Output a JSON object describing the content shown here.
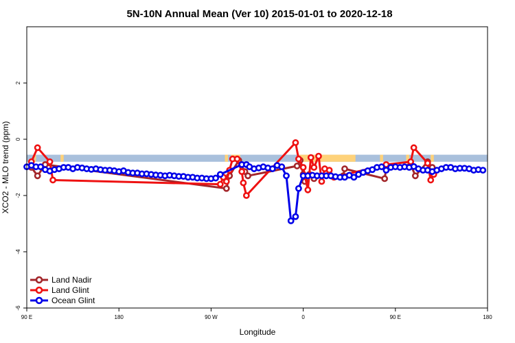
{
  "chart_data": {
    "type": "line",
    "title": "5N-10N Annual Mean (Ver 10)   2015-01-01 to 2020-12-18",
    "xlabel": "Longitude",
    "ylabel": "XCO2 - MLO trend (ppm)",
    "xlim": [
      -90,
      210
    ],
    "ylim": [
      -6,
      4
    ],
    "x_ticks": [
      {
        "value": -90,
        "label": "90 E"
      },
      {
        "value": -30,
        "label": "180"
      },
      {
        "value": 30,
        "label": "90 W"
      },
      {
        "value": 90,
        "label": "0"
      },
      {
        "value": 150,
        "label": "90 E"
      },
      {
        "value": 210,
        "label": "180"
      }
    ],
    "y_ticks": [
      {
        "value": -6,
        "label": "-6"
      },
      {
        "value": -4,
        "label": "-4"
      },
      {
        "value": -2,
        "label": "-2"
      },
      {
        "value": 0,
        "label": "0"
      },
      {
        "value": 2,
        "label": "2"
      }
    ],
    "surface_band": {
      "ymin": -0.8,
      "ymax": -0.55,
      "ocean_color": "#a9c0dc",
      "land_color": "#fed27a",
      "land_ranges": [
        [
          -85,
          -84
        ],
        [
          -68,
          -66
        ],
        [
          39,
          41
        ],
        [
          43,
          49
        ],
        [
          86,
          124
        ],
        [
          140,
          142
        ],
        [
          157,
          159
        ],
        [
          173,
          175
        ]
      ]
    },
    "legend_position": "bottom-left",
    "series": [
      {
        "name": "Land Nadir",
        "color": "#a3262a",
        "points": [
          [
            -87,
            -1.0
          ],
          [
            -83,
            -1.3
          ],
          [
            -78,
            -0.9
          ],
          [
            40,
            -1.75
          ],
          [
            42,
            -1.3
          ],
          [
            48,
            -0.75
          ],
          [
            52,
            -1.15
          ],
          [
            54,
            -1.3
          ],
          [
            86,
            -0.95
          ],
          [
            88,
            -0.75
          ],
          [
            90,
            -1.25
          ],
          [
            91,
            -1.5
          ],
          [
            94,
            -1.25
          ],
          [
            97,
            -1.4
          ],
          [
            99,
            -1.3
          ],
          [
            116,
            -1.3
          ],
          [
            117,
            -1.05
          ],
          [
            143,
            -1.4
          ],
          [
            144,
            -1.05
          ],
          [
            160,
            -0.9
          ],
          [
            163,
            -1.3
          ],
          [
            171,
            -0.8
          ],
          [
            174,
            -1.0
          ]
        ]
      },
      {
        "name": "Land Glint",
        "color": "#ee1111",
        "points": [
          [
            -87,
            -0.8
          ],
          [
            -83,
            -0.3
          ],
          [
            -75,
            -0.8
          ],
          [
            -73,
            -1.45
          ],
          [
            36,
            -1.6
          ],
          [
            38,
            -1.35
          ],
          [
            40,
            -1.5
          ],
          [
            42,
            -1.1
          ],
          [
            44,
            -0.7
          ],
          [
            47,
            -0.7
          ],
          [
            50,
            -1.15
          ],
          [
            51,
            -1.55
          ],
          [
            53,
            -2.0
          ],
          [
            85,
            -0.12
          ],
          [
            87,
            -0.7
          ],
          [
            90,
            -1.0
          ],
          [
            93,
            -1.8
          ],
          [
            95,
            -0.65
          ],
          [
            97,
            -1.0
          ],
          [
            100,
            -0.6
          ],
          [
            102,
            -1.5
          ],
          [
            104,
            -1.05
          ],
          [
            107,
            -1.1
          ],
          [
            110,
            -1.35
          ],
          [
            144,
            -0.9
          ],
          [
            160,
            -0.8
          ],
          [
            162,
            -0.3
          ],
          [
            171,
            -0.85
          ],
          [
            173,
            -1.45
          ],
          [
            175,
            -1.25
          ]
        ]
      },
      {
        "name": "Ocean Glint",
        "color": "#0000e8",
        "points": [
          [
            -90,
            -0.98
          ],
          [
            -87,
            -0.93
          ],
          [
            -84,
            -0.98
          ],
          [
            -81,
            -0.98
          ],
          [
            -78,
            -1.08
          ],
          [
            -75,
            -1.13
          ],
          [
            -72,
            -1.08
          ],
          [
            -69,
            -1.05
          ],
          [
            -66,
            -1.0
          ],
          [
            -63,
            -1.0
          ],
          [
            -60,
            -1.05
          ],
          [
            -57,
            -1.0
          ],
          [
            -54,
            -1.02
          ],
          [
            -51,
            -1.05
          ],
          [
            -48,
            -1.07
          ],
          [
            -45,
            -1.05
          ],
          [
            -42,
            -1.08
          ],
          [
            -39,
            -1.1
          ],
          [
            -36,
            -1.1
          ],
          [
            -33,
            -1.12
          ],
          [
            -30,
            -1.15
          ],
          [
            -27,
            -1.12
          ],
          [
            -24,
            -1.18
          ],
          [
            -21,
            -1.2
          ],
          [
            -18,
            -1.2
          ],
          [
            -15,
            -1.23
          ],
          [
            -12,
            -1.23
          ],
          [
            -9,
            -1.25
          ],
          [
            -6,
            -1.27
          ],
          [
            -3,
            -1.28
          ],
          [
            0,
            -1.3
          ],
          [
            3,
            -1.28
          ],
          [
            6,
            -1.3
          ],
          [
            9,
            -1.32
          ],
          [
            12,
            -1.32
          ],
          [
            15,
            -1.35
          ],
          [
            18,
            -1.35
          ],
          [
            21,
            -1.38
          ],
          [
            24,
            -1.38
          ],
          [
            27,
            -1.4
          ],
          [
            30,
            -1.4
          ],
          [
            33,
            -1.38
          ],
          [
            36,
            -1.25
          ],
          [
            50,
            -0.9
          ],
          [
            53,
            -0.9
          ],
          [
            55,
            -0.98
          ],
          [
            58,
            -1.05
          ],
          [
            61,
            -1.02
          ],
          [
            64,
            -0.98
          ],
          [
            67,
            -1.02
          ],
          [
            70,
            -1.05
          ],
          [
            73,
            -0.93
          ],
          [
            76,
            -0.98
          ],
          [
            79,
            -1.3
          ],
          [
            82,
            -2.9
          ],
          [
            85,
            -2.75
          ],
          [
            87,
            -1.75
          ],
          [
            90,
            -1.3
          ],
          [
            93,
            -1.3
          ],
          [
            96,
            -1.28
          ],
          [
            99,
            -1.3
          ],
          [
            102,
            -1.3
          ],
          [
            105,
            -1.3
          ],
          [
            108,
            -1.3
          ],
          [
            111,
            -1.33
          ],
          [
            114,
            -1.35
          ],
          [
            117,
            -1.35
          ],
          [
            120,
            -1.28
          ],
          [
            123,
            -1.35
          ],
          [
            126,
            -1.25
          ],
          [
            129,
            -1.18
          ],
          [
            132,
            -1.12
          ],
          [
            135,
            -1.08
          ],
          [
            138,
            -1.0
          ],
          [
            141,
            -0.98
          ],
          [
            144,
            -1.1
          ],
          [
            147,
            -1.0
          ],
          [
            150,
            -0.98
          ],
          [
            153,
            -1.0
          ],
          [
            156,
            -0.98
          ],
          [
            159,
            -1.0
          ],
          [
            162,
            -0.97
          ],
          [
            165,
            -1.05
          ],
          [
            168,
            -1.1
          ],
          [
            171,
            -1.1
          ],
          [
            174,
            -1.15
          ],
          [
            177,
            -1.1
          ],
          [
            180,
            -1.05
          ],
          [
            183,
            -1.0
          ],
          [
            186,
            -1.0
          ],
          [
            189,
            -1.05
          ],
          [
            192,
            -1.03
          ],
          [
            195,
            -1.03
          ],
          [
            198,
            -1.05
          ],
          [
            201,
            -1.1
          ],
          [
            204,
            -1.08
          ],
          [
            207,
            -1.1
          ]
        ]
      }
    ]
  }
}
